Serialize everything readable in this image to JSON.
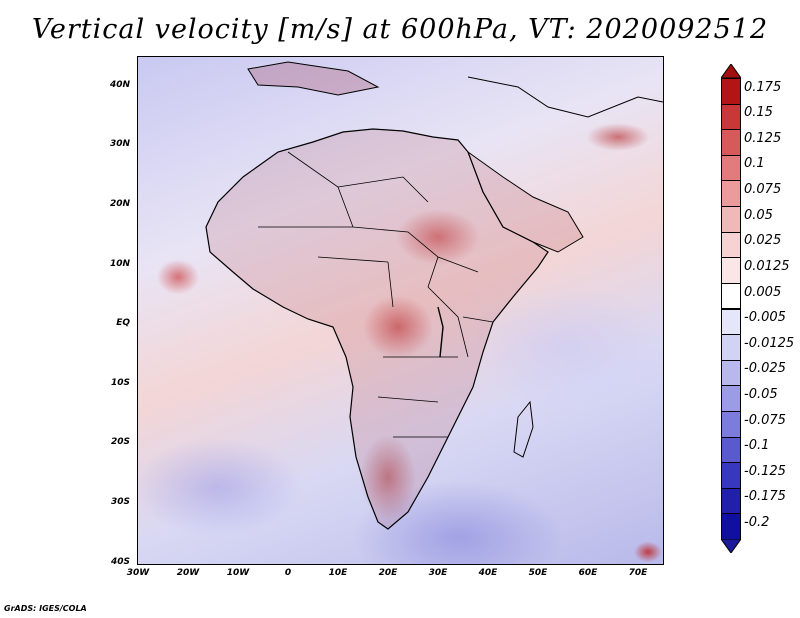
{
  "title": "Vertical velocity [m/s] at 600hPa, VT: 2020092512",
  "map": {
    "projection": "lat-lon",
    "region": "Africa",
    "lon_range": [
      -30,
      75
    ],
    "lat_range": [
      -40,
      45
    ],
    "lon_ticks": [
      "30W",
      "20W",
      "10W",
      "0",
      "10E",
      "20E",
      "30E",
      "40E",
      "50E",
      "60E",
      "70E"
    ],
    "lat_ticks": [
      "40N",
      "30N",
      "20N",
      "10N",
      "EQ",
      "10S",
      "20S",
      "30S",
      "40S"
    ],
    "field_colors": {
      "positive": "#b22222",
      "neutral": "#ffffff",
      "negative": "#3a3acc"
    }
  },
  "colorbar": {
    "labels": [
      "0.175",
      "0.15",
      "0.125",
      "0.1",
      "0.075",
      "0.05",
      "0.025",
      "0.0125",
      "0.005",
      "-0.005",
      "-0.0125",
      "-0.025",
      "-0.05",
      "-0.075",
      "-0.1",
      "-0.125",
      "-0.175",
      "-0.2"
    ],
    "colors": [
      "#b31515",
      "#c93838",
      "#d75a5a",
      "#e27c7c",
      "#eb9b9b",
      "#f1b8b8",
      "#f6d2d2",
      "#fae6e6",
      "#ffffff",
      "#e6e6fa",
      "#d2d2f4",
      "#b8b8ee",
      "#9b9be6",
      "#7c7cdc",
      "#5a5acf",
      "#3838bf",
      "#2020aa",
      "#1010a0"
    ]
  },
  "credit": "GrADS: IGES/COLA"
}
